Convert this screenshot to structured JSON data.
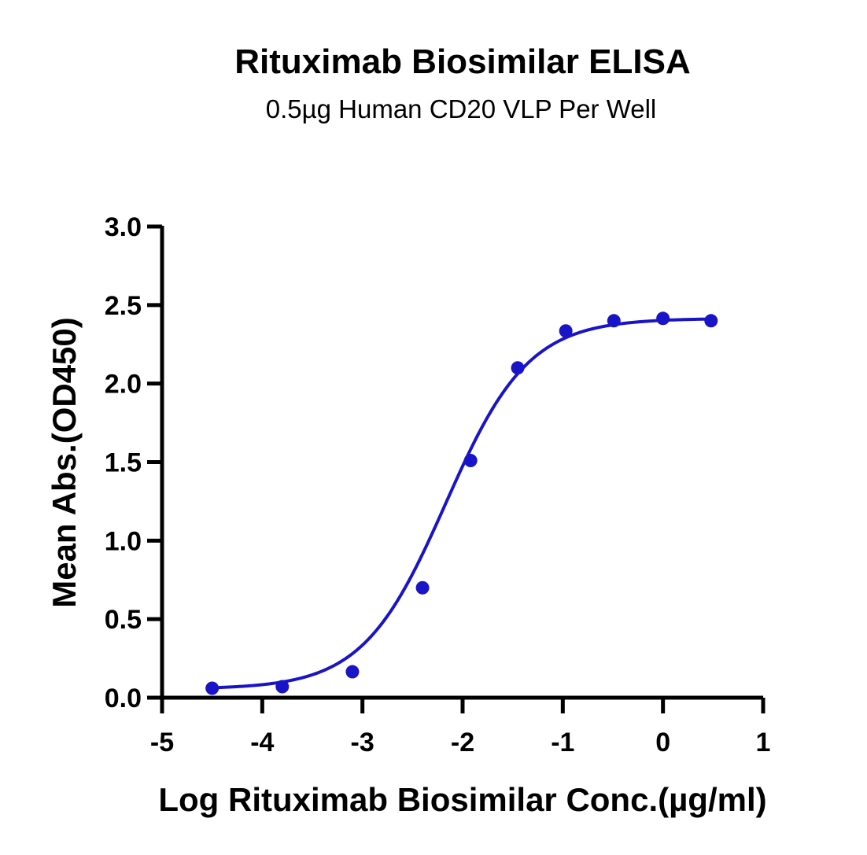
{
  "chart_data": {
    "type": "line",
    "title": "Rituximab Biosimilar ELISA",
    "subtitle": "0.5µg Human CD20 VLP Per Well",
    "xlabel": "Log Rituximab Biosimilar Conc.(µg/ml)",
    "ylabel": "Mean Abs.(OD450)",
    "xlim": [
      -5,
      1
    ],
    "ylim": [
      0,
      3
    ],
    "x_ticks": [
      "-5",
      "-4",
      "-3",
      "-2",
      "-1",
      "0",
      "1"
    ],
    "y_ticks": [
      "0.0",
      "0.5",
      "1.0",
      "1.5",
      "2.0",
      "2.5",
      "3.0"
    ],
    "grid": false,
    "legend": "none",
    "series": [
      {
        "color": "#1a14c8",
        "x": [
          -4.5,
          -3.8,
          -3.1,
          -2.4,
          -1.92,
          -1.45,
          -0.97,
          -0.49,
          0.0,
          0.48
        ],
        "y": [
          0.06,
          0.07,
          0.165,
          0.7,
          1.51,
          2.1,
          2.335,
          2.4,
          2.415,
          2.4
        ],
        "fit": {
          "bottom": 0.055,
          "top": 2.415,
          "logEC50": -2.17,
          "hill": 1.05
        }
      }
    ]
  }
}
